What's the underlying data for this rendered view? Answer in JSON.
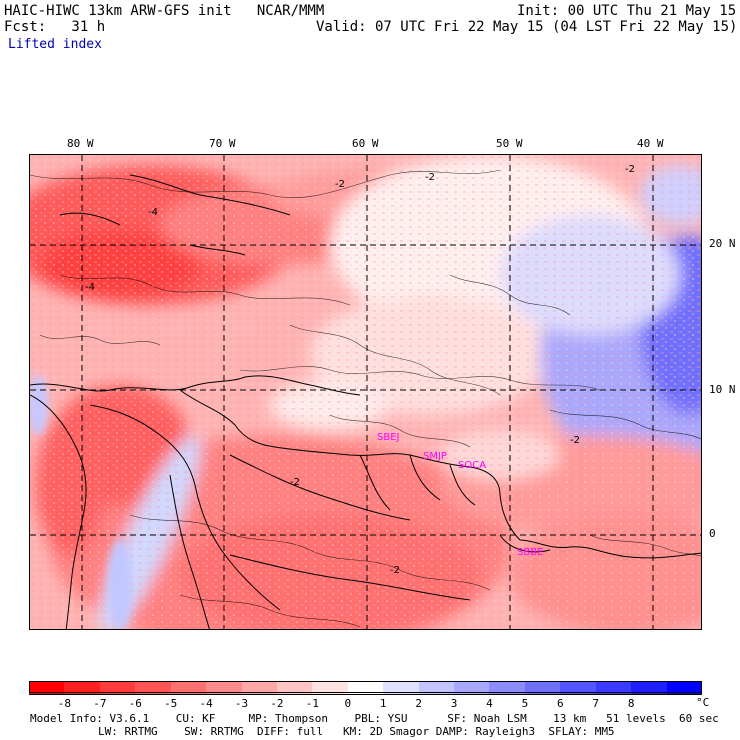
{
  "header": {
    "model_line": "HAIC-HIWC 13km ARW-GFS init   NCAR/MMM",
    "fcst_line": "Fcst:   31 h",
    "field": "Lifted index",
    "init": "Init: 00 UTC Thu 21 May 15",
    "valid": "Valid: 07 UTC Fri 22 May 15 (04 LST Fri 22 May 15)"
  },
  "axes": {
    "lon_labels": [
      "80 W",
      "70 W",
      "60 W",
      "50 W",
      "40 W"
    ],
    "lat_labels": [
      "20 N",
      "10 N",
      "0"
    ]
  },
  "stations": [
    "SBEJ",
    "SMJP",
    "SOCA",
    "SBBE"
  ],
  "colorbar": {
    "labels": [
      "-8",
      "-7",
      "-6",
      "-5",
      "-4",
      "-3",
      "-2",
      "-1",
      "0",
      "1",
      "2",
      "3",
      "4",
      "5",
      "6",
      "7",
      "8"
    ],
    "unit": "°C",
    "colors": [
      "#ff0000",
      "#ff2020",
      "#ff3b3b",
      "#ff5555",
      "#ff7070",
      "#ff8c8c",
      "#ffa8a8",
      "#ffc4c4",
      "#ffe2e2",
      "#ffffff",
      "#e0e0ff",
      "#c4c4ff",
      "#a8a8ff",
      "#8c8cff",
      "#7070ff",
      "#5555ff",
      "#3b3bff",
      "#2020ff",
      "#0000ff"
    ]
  },
  "footer": {
    "line1": "Model Info: V3.6.1    CU: KF     MP: Thompson    PBL: YSU      SF: Noah LSM    13 km   51 levels  60 sec",
    "line2": "LW: RRTMG    SW: RRTMG  DIFF: full   KM: 2D Smagor DAMP: Rayleigh3  SFLAY: MM5"
  },
  "contour_labels": [
    "-2",
    "-2",
    "-2",
    "-4",
    "-2",
    "-2",
    "-4",
    "-2"
  ]
}
